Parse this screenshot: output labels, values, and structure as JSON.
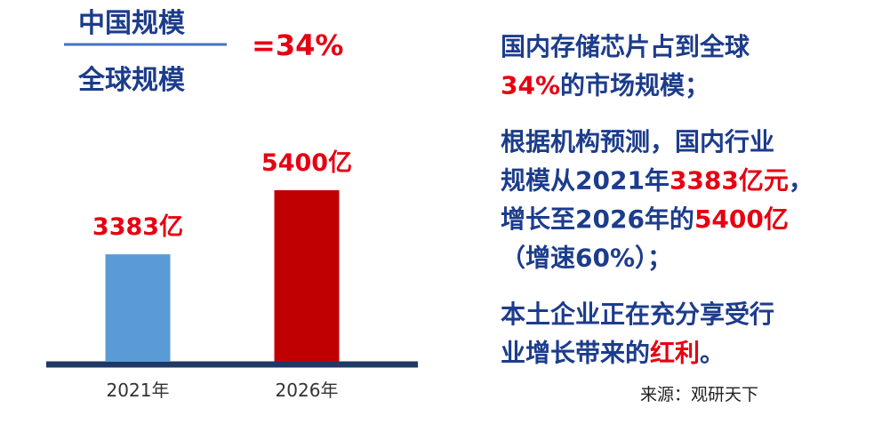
{
  "chart_data": {
    "type": "bar",
    "categories": [
      "2021年",
      "2026年"
    ],
    "values": [
      3383,
      5400
    ],
    "value_labels": [
      "3383亿",
      "5400亿"
    ],
    "colors": [
      "#5b9bd5",
      "#c00000"
    ],
    "label_color": "#e60012"
  },
  "ratio": {
    "numerator": "中国规模",
    "denominator": "全球规模",
    "result": "=34%"
  },
  "notes": [
    [
      [
        {
          "text": "国内存储芯片占到全球",
          "color": "#1c3c8c"
        }
      ],
      [
        {
          "text": "34%",
          "color": "#e60012"
        },
        {
          "text": "的市场规模；",
          "color": "#1c3c8c"
        }
      ]
    ],
    [
      [
        {
          "text": "根据机构预测，国内行业",
          "color": "#1c3c8c"
        }
      ],
      [
        {
          "text": "规模从2021年",
          "color": "#1c3c8c"
        },
        {
          "text": "3383亿元",
          "color": "#e60012"
        },
        {
          "text": "，",
          "color": "#1c3c8c"
        }
      ],
      [
        {
          "text": "增长至2026年的",
          "color": "#1c3c8c"
        },
        {
          "text": "5400亿",
          "color": "#e60012"
        }
      ],
      [
        {
          "text": "（增速60%）；",
          "color": "#1c3c8c"
        }
      ]
    ],
    [
      [
        {
          "text": "本土企业正在充分享受行",
          "color": "#1c3c8c"
        }
      ],
      [
        {
          "text": "业增长带来的",
          "color": "#1c3c8c"
        },
        {
          "text": "红利",
          "color": "#e60012"
        },
        {
          "text": "。",
          "color": "#1c3c8c"
        }
      ]
    ]
  ],
  "source": "来源：观研天下"
}
